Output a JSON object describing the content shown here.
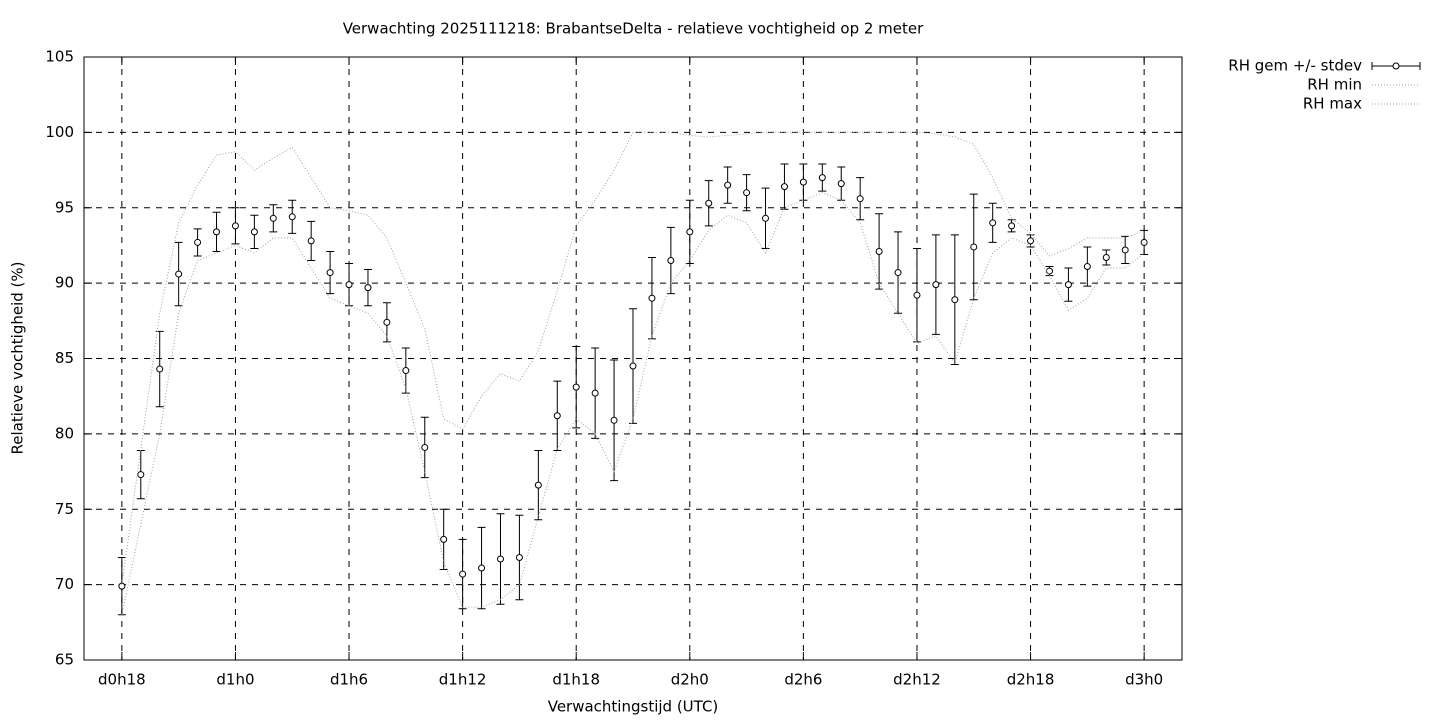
{
  "chart_data": {
    "type": "line",
    "title": "Verwachting 2025111218: BrabantseDelta - relatieve vochtigheid op 2 meter",
    "xlabel": "Verwachtingstijd (UTC)",
    "ylabel": "Relatieve vochtigheid (%)",
    "x": [
      18,
      19,
      20,
      21,
      22,
      23,
      24,
      25,
      26,
      27,
      28,
      29,
      30,
      31,
      32,
      33,
      34,
      35,
      36,
      37,
      38,
      39,
      40,
      41,
      42,
      43,
      44,
      45,
      46,
      47,
      48,
      49,
      50,
      51,
      52,
      53,
      54,
      55,
      56,
      57,
      58,
      59,
      60,
      61,
      62,
      63,
      64,
      65,
      66,
      67,
      68,
      69,
      70,
      71,
      72
    ],
    "series": [
      {
        "name": "RH gem +/- stdev",
        "color": "#000000",
        "values": [
          69.9,
          77.3,
          84.3,
          90.6,
          92.7,
          93.4,
          93.8,
          93.4,
          94.3,
          94.4,
          92.8,
          90.7,
          89.9,
          89.7,
          87.4,
          84.2,
          79.1,
          73.0,
          70.7,
          71.1,
          71.7,
          71.8,
          76.6,
          81.2,
          83.1,
          82.7,
          80.9,
          84.5,
          89.0,
          91.5,
          93.4,
          95.3,
          96.5,
          96.0,
          94.3,
          96.4,
          96.7,
          97.0,
          96.6,
          95.6,
          92.1,
          90.7,
          89.2,
          89.9,
          88.9,
          92.4,
          94.0,
          93.8,
          92.8,
          90.8,
          89.9,
          91.1,
          91.7,
          92.2,
          92.7
        ],
        "stdev": [
          1.9,
          1.6,
          2.5,
          2.1,
          0.9,
          1.3,
          1.2,
          1.1,
          0.9,
          1.1,
          1.3,
          1.4,
          1.4,
          1.2,
          1.3,
          1.5,
          2.0,
          2.0,
          2.3,
          2.7,
          3.0,
          2.8,
          2.3,
          2.3,
          2.7,
          3.0,
          4.0,
          3.8,
          2.7,
          2.2,
          2.1,
          1.5,
          1.2,
          1.2,
          2.0,
          1.5,
          1.2,
          0.9,
          1.1,
          1.4,
          2.5,
          2.7,
          3.1,
          3.3,
          4.3,
          3.5,
          1.3,
          0.4,
          0.4,
          0.3,
          1.1,
          1.3,
          0.5,
          0.9,
          0.8
        ]
      },
      {
        "name": "RH min",
        "color": "#a0a0a0",
        "values": [
          68.0,
          74,
          80,
          88,
          91.5,
          92,
          92.5,
          92.0,
          93.0,
          93.0,
          91,
          89,
          88.5,
          88.0,
          86.5,
          83,
          77.5,
          71.5,
          68.5,
          68.5,
          69,
          70,
          74.5,
          79,
          81,
          80,
          77.5,
          81,
          86.5,
          90,
          91.5,
          93.5,
          94.5,
          94,
          92,
          95,
          95.5,
          96,
          95.5,
          94,
          90,
          88,
          86,
          86.5,
          84.7,
          89,
          92,
          93,
          92.5,
          90.5,
          88.2,
          89,
          91,
          91,
          92
        ]
      },
      {
        "name": "RH max",
        "color": "#a0a0a0",
        "values": [
          70,
          79,
          88,
          94,
          96.5,
          98.5,
          98.7,
          97.5,
          98.3,
          99.0,
          97,
          95,
          94.8,
          94.5,
          93,
          90,
          87,
          81,
          80.3,
          82.5,
          84,
          83.5,
          85.5,
          89.5,
          93.8,
          95.5,
          97.5,
          100,
          100,
          100,
          99.8,
          99.7,
          99.8,
          99.9,
          100,
          100,
          100,
          100,
          100,
          100,
          100,
          100,
          100,
          99.9,
          99.7,
          99.2,
          97,
          94.3,
          93.3,
          91.8,
          92.3,
          93,
          93,
          93,
          93.5
        ]
      }
    ],
    "xlim": [
      16,
      74
    ],
    "xticks": [
      {
        "value": 18,
        "label": "d0h18"
      },
      {
        "value": 24,
        "label": "d1h0"
      },
      {
        "value": 30,
        "label": "d1h6"
      },
      {
        "value": 36,
        "label": "d1h12"
      },
      {
        "value": 42,
        "label": "d1h18"
      },
      {
        "value": 48,
        "label": "d2h0"
      },
      {
        "value": 54,
        "label": "d2h6"
      },
      {
        "value": 60,
        "label": "d2h12"
      },
      {
        "value": 66,
        "label": "d2h18"
      },
      {
        "value": 72,
        "label": "d3h0"
      }
    ],
    "ylim": [
      65,
      105
    ],
    "yticks": [
      65,
      70,
      75,
      80,
      85,
      90,
      95,
      100,
      105
    ],
    "grid": true,
    "legend": "outside-right"
  }
}
